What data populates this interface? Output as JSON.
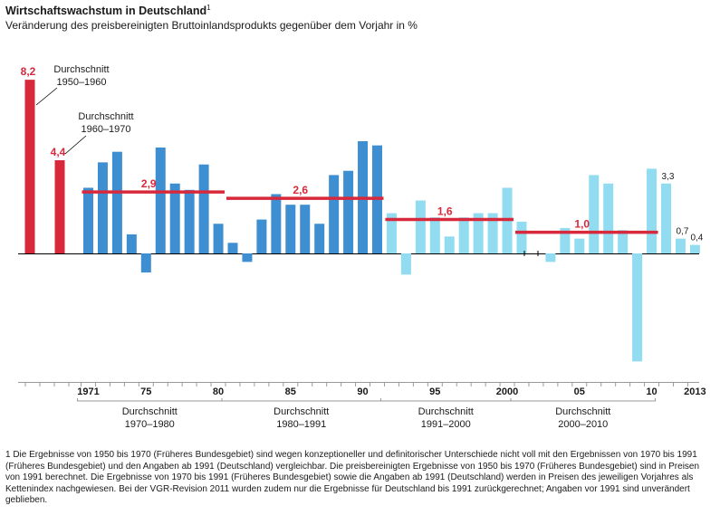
{
  "title": "Wirtschaftswachstum in Deutschland",
  "title_footnote_mark": "1",
  "subtitle": "Veränderung des preisbereinigten Bruttoinlandsprodukts gegenüber dem Vorjahr in %",
  "footnote": "1 Die Ergebnisse von 1950 bis 1970 (Früheres Bundesgebiet) sind wegen konzeptioneller und definitorischer Unterschiede nicht voll mit den Ergebnissen von 1970 bis 1991 (Früheres Bundesgebiet) und den Angaben ab 1991 (Deutschland) vergleichbar. Die preisbereinigten Ergebnisse von 1950 bis 1970 (Früheres Bundesgebiet) sind in Preisen von 1991 berechnet. Die Ergebnisse von 1970 bis 1991 (Früheres Bundesgebiet) sowie die Angaben ab 1991 (Deutschland) werden in Preisen des jeweiligen Vorjahres als Kettenindex nachgewiesen. Bei der VGR-Revision 2011 wurden zudem nur die Ergebnisse für Deutschland bis 1991 zurückgerechnet; Angaben vor 1991 sind unverändert geblieben.",
  "colors": {
    "average_bar": "#d8283b",
    "average_line": "#d8283b",
    "bar_1970_1991": "#3d8fd1",
    "bar_1991_2013": "#91dcf1",
    "axis": "#000000",
    "grid": "#9a9a9a"
  },
  "chart_data": {
    "type": "bar",
    "ylim": [
      -5.6,
      9.5
    ],
    "average_bars": [
      {
        "label_lines": [
          "Durchschnitt",
          "1950–1960"
        ],
        "value": 8.2,
        "value_label": "8,2"
      },
      {
        "label_lines": [
          "Durchschnitt",
          "1960–1970"
        ],
        "value": 4.4,
        "value_label": "4,4"
      }
    ],
    "years": [
      1971,
      1972,
      1973,
      1974,
      1975,
      1976,
      1977,
      1978,
      1979,
      1980,
      1981,
      1982,
      1983,
      1984,
      1985,
      1986,
      1987,
      1988,
      1989,
      1990,
      1991,
      1992,
      1993,
      1994,
      1995,
      1996,
      1997,
      1998,
      1999,
      2000,
      2001,
      2002,
      2003,
      2004,
      2005,
      2006,
      2007,
      2008,
      2009,
      2010,
      2011,
      2012,
      2013
    ],
    "series": [
      {
        "segment": "1970-1991",
        "values": [
          3.1,
          4.3,
          4.8,
          0.9,
          -0.9,
          5.0,
          3.3,
          3.0,
          4.2,
          1.4,
          0.5,
          -0.4,
          1.6,
          2.8,
          2.3,
          2.3,
          1.4,
          3.7,
          3.9,
          5.3,
          5.1
        ]
      },
      {
        "segment": "1991-2013",
        "values": [
          1.9,
          -1.0,
          2.5,
          1.7,
          0.8,
          1.7,
          1.9,
          1.9,
          3.1,
          1.5,
          0.0,
          -0.4,
          1.2,
          0.7,
          3.7,
          3.3,
          1.1,
          -5.1,
          4.0,
          3.3,
          0.7,
          0.4
        ]
      }
    ],
    "value_labels": [
      {
        "year": 2011,
        "text": "3,3"
      },
      {
        "year": 2012,
        "text": "0,7"
      },
      {
        "year": 2013,
        "text": "0,4"
      }
    ],
    "averages": [
      {
        "from": 1971,
        "to": 1980,
        "value": 2.9,
        "value_label": "2,9",
        "label_lines": [
          "Durchschnitt",
          "1970–1980"
        ]
      },
      {
        "from": 1981,
        "to": 1991,
        "value": 2.6,
        "value_label": "2,6",
        "label_lines": [
          "Durchschnitt",
          "1980–1991"
        ]
      },
      {
        "from": 1992,
        "to": 2000,
        "value": 1.6,
        "value_label": "1,6",
        "label_lines": [
          "Durchschnitt",
          "1991–2000"
        ]
      },
      {
        "from": 2001,
        "to": 2010,
        "value": 1.0,
        "value_label": "1,0",
        "label_lines": [
          "Durchschnitt",
          "2000–2010"
        ]
      }
    ],
    "tick_labels": [
      {
        "year": 1971,
        "text": "1971"
      },
      {
        "year": 1975,
        "text": "75"
      },
      {
        "year": 1980,
        "text": "80"
      },
      {
        "year": 1985,
        "text": "85"
      },
      {
        "year": 1990,
        "text": "90"
      },
      {
        "year": 1995,
        "text": "95"
      },
      {
        "year": 2000,
        "text": "2000"
      },
      {
        "year": 2005,
        "text": "05"
      },
      {
        "year": 2010,
        "text": "10"
      },
      {
        "year": 2013,
        "text": "2013"
      }
    ],
    "grid": false,
    "legend": "none"
  }
}
